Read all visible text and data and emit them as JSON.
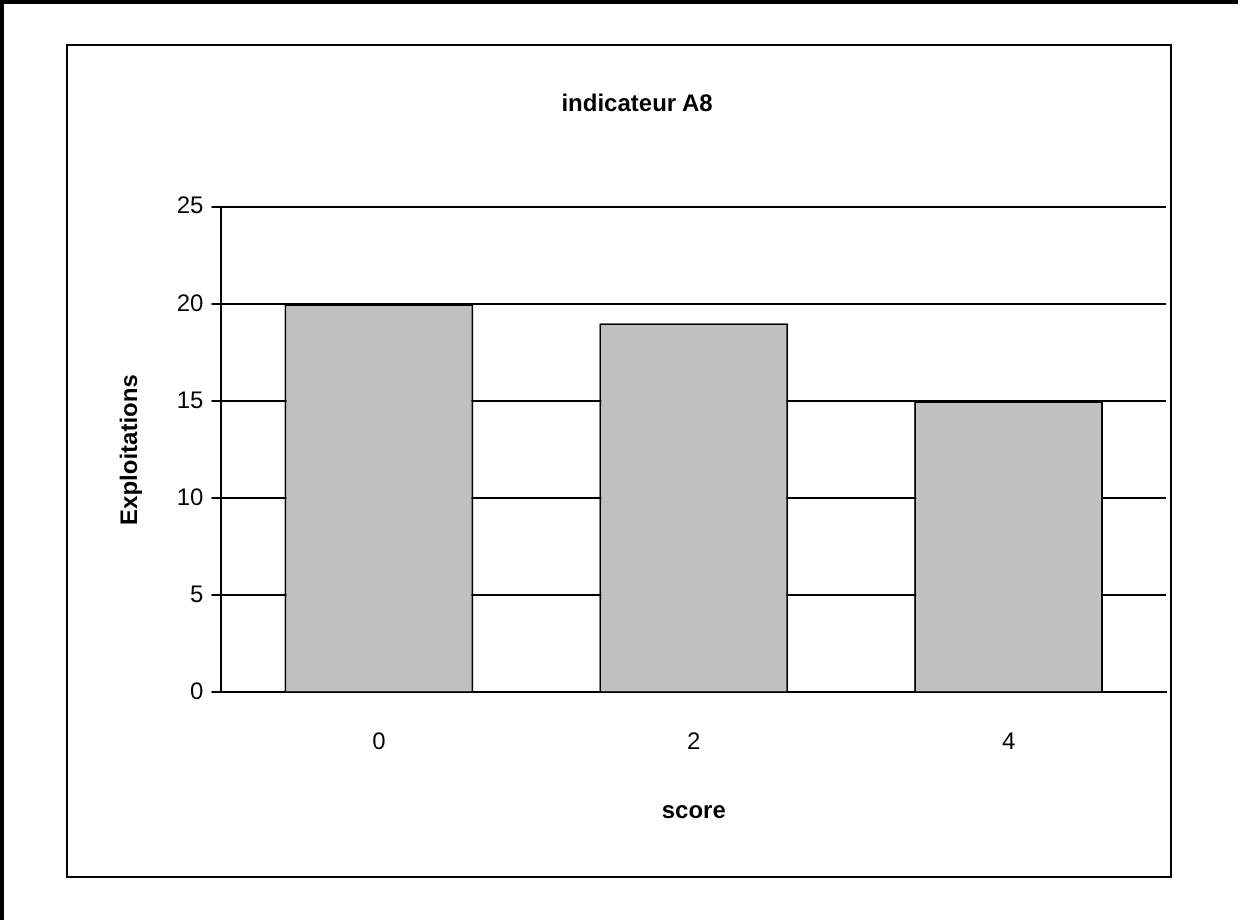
{
  "chart_data": {
    "type": "bar",
    "title": "indicateur A8",
    "xlabel": "score",
    "ylabel": "Exploitations",
    "categories": [
      "0",
      "2",
      "4"
    ],
    "values": [
      20,
      19,
      15
    ],
    "color": "#c0c0c0",
    "ylim": [
      0,
      25
    ],
    "yticks": [
      0,
      5,
      10,
      15,
      20,
      25
    ],
    "grid": "y",
    "legend": false
  }
}
